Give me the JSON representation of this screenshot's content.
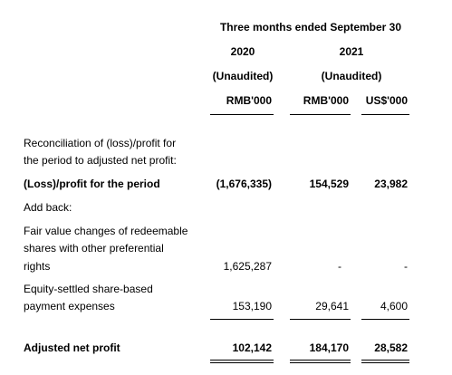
{
  "header": {
    "period": "Three months ended September 30",
    "years": [
      "2020",
      "2021"
    ],
    "audit_status": [
      "(Unaudited)",
      "(Unaudited)"
    ],
    "currencies": [
      "RMB'000",
      "RMB'000",
      "US$'000"
    ]
  },
  "rows": [
    {
      "label": [
        "Reconciliation of (loss)/profit for",
        "the period to adjusted net profit:"
      ]
    },
    {
      "label": [
        "(Loss)/profit for the period"
      ],
      "values": [
        "(1,676,335)",
        "154,529",
        "23,982"
      ]
    },
    {
      "label": [
        "Add back:"
      ]
    },
    {
      "label": [
        "Fair value changes of redeemable",
        "shares with other preferential",
        "rights"
      ],
      "values": [
        "1,625,287",
        "-",
        "-"
      ]
    },
    {
      "label": [
        "Equity-settled share-based",
        "payment expenses"
      ],
      "values": [
        "153,190",
        "29,641",
        "4,600"
      ]
    },
    {
      "label": [
        "Adjusted net profit"
      ],
      "values": [
        "102,142",
        "184,170",
        "28,582"
      ]
    }
  ]
}
